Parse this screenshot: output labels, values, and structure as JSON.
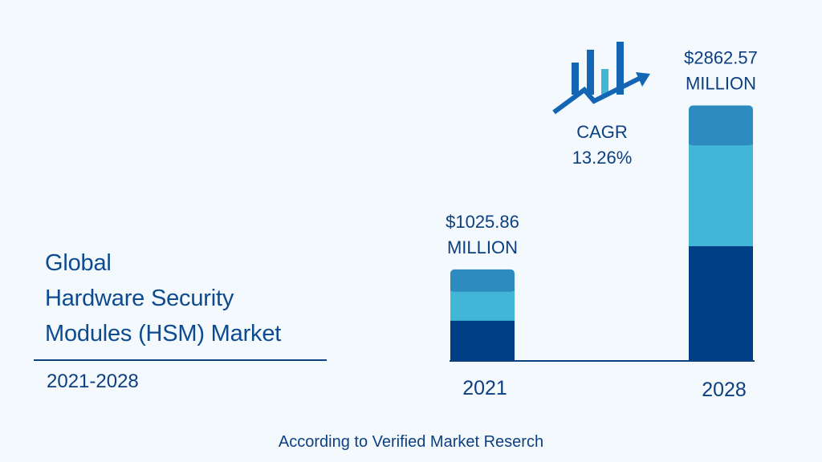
{
  "title_lines": [
    "Global",
    "Hardware Security",
    "Modules (HSM) Market"
  ],
  "period": "2021-2028",
  "source": "According to Verified Market Reserch",
  "cagr": {
    "label": "CAGR",
    "value": "13.26%"
  },
  "colors": {
    "segment_bottom": "#003f86",
    "segment_middle": "#42b6d6",
    "segment_top": "#2d8bbf",
    "text": "#0e3f80",
    "icon_dark": "#1466b4",
    "icon_light": "#42b6d6"
  },
  "icon": "bar-chart-growth-arrow-icon",
  "chart_data": {
    "type": "bar",
    "stacked": true,
    "unit": "$ MILLION",
    "categories": [
      "2021",
      "2028"
    ],
    "totals": [
      1025.86,
      2862.57
    ],
    "value_labels": [
      [
        "$1025.86",
        "MILLION"
      ],
      [
        "$2862.57",
        "MILLION"
      ]
    ],
    "series": [
      {
        "values": [
          455.0,
          1290.0
        ]
      },
      {
        "values": [
          325.0,
          1130.0
        ]
      },
      {
        "values": [
          245.86,
          442.57
        ]
      }
    ],
    "ylim": [
      0,
      3200
    ],
    "grid": false,
    "legend": "none"
  }
}
